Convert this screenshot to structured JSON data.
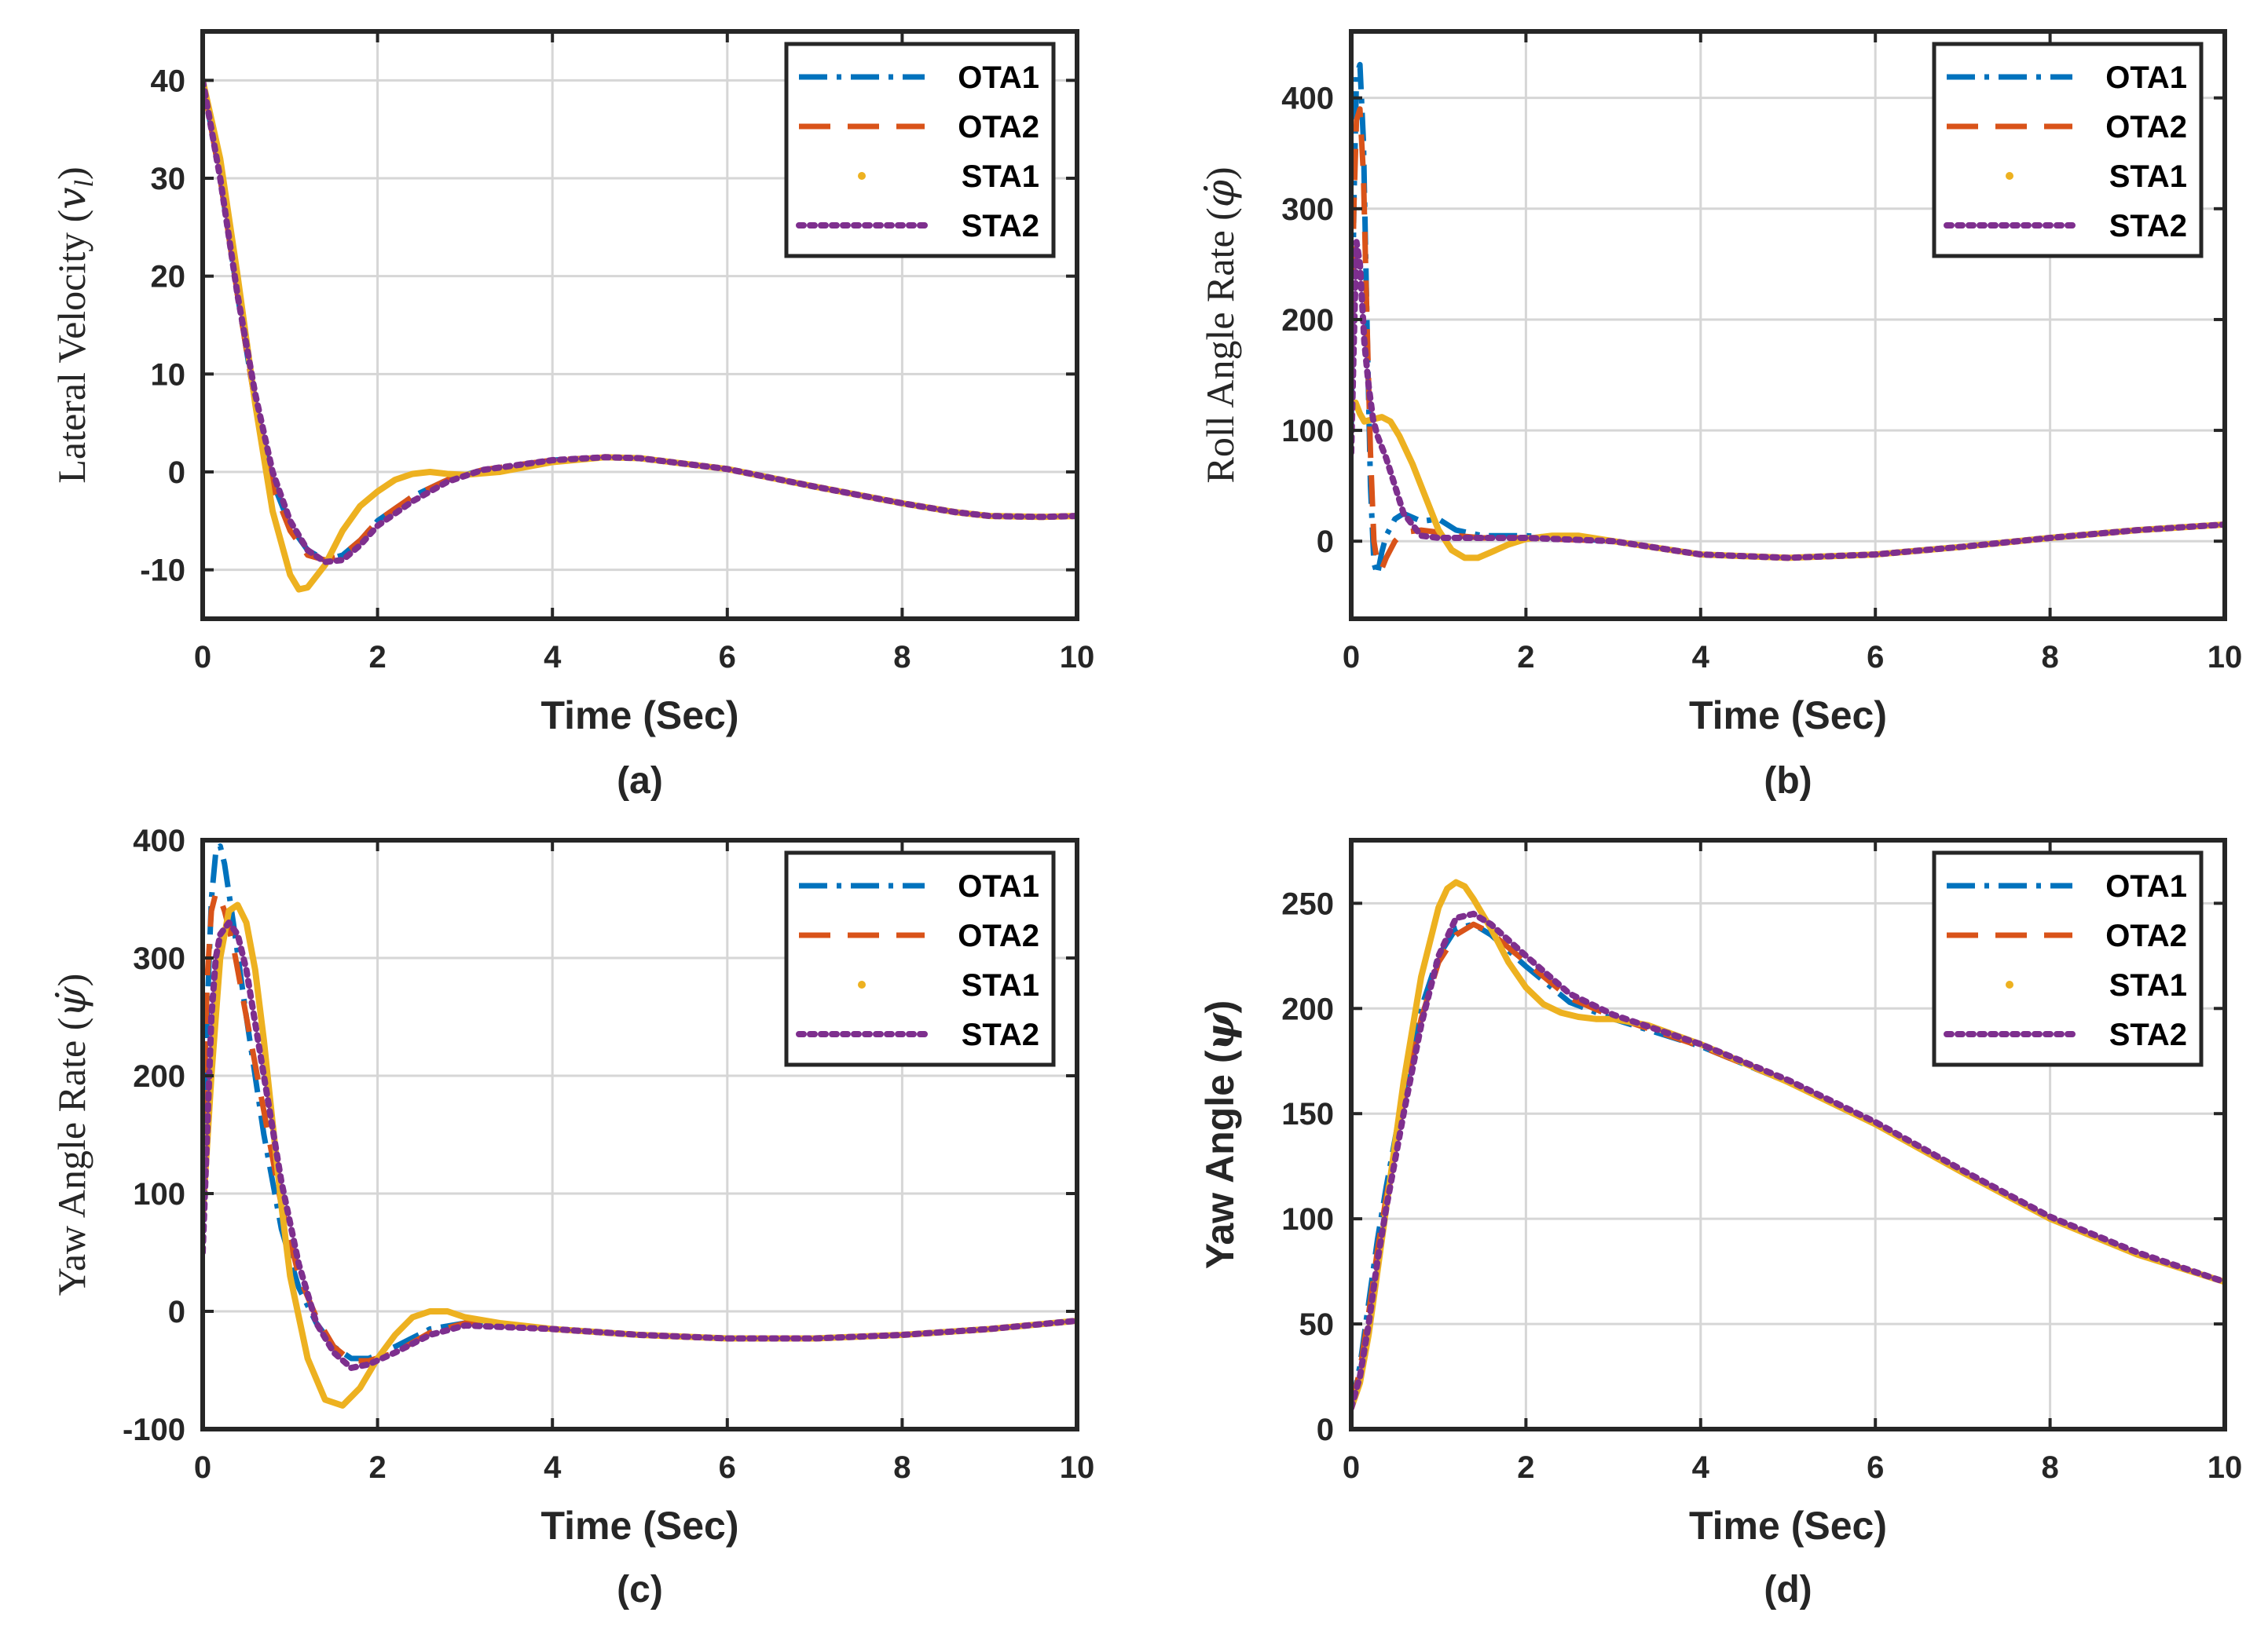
{
  "colors": {
    "OTA1": "#0072BD",
    "OTA2": "#D95319",
    "STA1": "#EDB120",
    "STA2": "#7E2F8E"
  },
  "chart_data": [
    {
      "type": "line",
      "caption": "(a)",
      "xlabel": "Time (Sec)",
      "ylabel": "Lateral Velocity (v_l)",
      "ylabel_text": "Lateral Velocity (",
      "ylabel_symbol": "v",
      "ylabel_sub": "l",
      "ylabel_close": ")",
      "xlim": [
        0,
        10
      ],
      "ylim": [
        -15,
        45
      ],
      "xticks": [
        0,
        2,
        4,
        6,
        8,
        10
      ],
      "yticks": [
        -10,
        0,
        10,
        20,
        30,
        40
      ],
      "grid": true,
      "legend": "top-right",
      "series": [
        {
          "name": "OTA1",
          "style": "dashdot",
          "x": [
            0,
            0.2,
            0.4,
            0.6,
            0.8,
            1.0,
            1.2,
            1.4,
            1.6,
            1.8,
            2.0,
            2.4,
            2.8,
            3.2,
            4.0,
            4.6,
            5.0,
            6.0,
            7.0,
            8.0,
            8.6,
            9.0,
            9.6,
            10
          ],
          "y": [
            40,
            30,
            18,
            7,
            -1,
            -5.5,
            -8,
            -9,
            -8.5,
            -7,
            -5,
            -2.5,
            -0.8,
            0.2,
            1.2,
            1.5,
            1.4,
            0.3,
            -1.5,
            -3.2,
            -4.1,
            -4.5,
            -4.6,
            -4.5
          ]
        },
        {
          "name": "OTA2",
          "style": "dashed",
          "x": [
            0,
            0.2,
            0.4,
            0.6,
            0.8,
            1.0,
            1.2,
            1.4,
            1.6,
            1.8,
            2.0,
            2.4,
            2.8,
            3.2,
            4.0,
            4.6,
            5.0,
            6.0,
            7.0,
            8.0,
            8.6,
            9.0,
            9.6,
            10
          ],
          "y": [
            40,
            30,
            18,
            7,
            -1.5,
            -6,
            -8.5,
            -9,
            -8.5,
            -7,
            -5,
            -2.5,
            -0.8,
            0.2,
            1.2,
            1.5,
            1.4,
            0.3,
            -1.5,
            -3.2,
            -4.1,
            -4.5,
            -4.6,
            -4.5
          ]
        },
        {
          "name": "STA1",
          "style": "solid",
          "x": [
            0,
            0.2,
            0.4,
            0.6,
            0.8,
            1.0,
            1.1,
            1.2,
            1.4,
            1.6,
            1.8,
            2.0,
            2.2,
            2.4,
            2.6,
            2.8,
            3.0,
            3.4,
            4.0,
            4.6,
            5.0,
            6.0,
            7.0,
            8.0,
            8.6,
            9.0,
            9.6,
            10
          ],
          "y": [
            40,
            32,
            20,
            7,
            -4,
            -10.5,
            -12,
            -11.8,
            -9.5,
            -6,
            -3.5,
            -2,
            -0.8,
            -0.2,
            0,
            -0.2,
            -0.3,
            0,
            1,
            1.5,
            1.4,
            0.3,
            -1.5,
            -3.2,
            -4.1,
            -4.5,
            -4.6,
            -4.5
          ]
        },
        {
          "name": "STA2",
          "style": "dotted",
          "x": [
            0,
            0.2,
            0.4,
            0.6,
            0.8,
            1.0,
            1.2,
            1.4,
            1.6,
            1.8,
            2.0,
            2.4,
            2.8,
            3.2,
            4.0,
            4.6,
            5.0,
            6.0,
            7.0,
            8.0,
            8.6,
            9.0,
            9.6,
            10
          ],
          "y": [
            40,
            30,
            18,
            8,
            0,
            -5,
            -8,
            -9.2,
            -9,
            -7.5,
            -5.5,
            -3,
            -1,
            0.2,
            1.2,
            1.5,
            1.4,
            0.3,
            -1.5,
            -3.2,
            -4.1,
            -4.5,
            -4.6,
            -4.5
          ]
        }
      ]
    },
    {
      "type": "line",
      "caption": "(b)",
      "xlabel": "Time (Sec)",
      "ylabel": "Roll Angle Rate (φ̇)",
      "ylabel_text": "Roll Angle Rate (",
      "ylabel_symbol": "φ̇",
      "ylabel_close": ")",
      "xlim": [
        0,
        10
      ],
      "ylim": [
        -70,
        460
      ],
      "xticks": [
        0,
        2,
        4,
        6,
        8,
        10
      ],
      "yticks": [
        0,
        100,
        200,
        300,
        400
      ],
      "grid": true,
      "legend": "top-right",
      "series": [
        {
          "name": "OTA1",
          "style": "dashdot",
          "x": [
            0,
            0.03,
            0.06,
            0.1,
            0.14,
            0.18,
            0.22,
            0.26,
            0.3,
            0.35,
            0.4,
            0.5,
            0.6,
            0.8,
            1.0,
            1.2,
            1.5,
            2.0,
            3.0,
            4.0,
            5.0,
            6.0,
            7.0,
            8.0,
            9.0,
            10
          ],
          "y": [
            100,
            300,
            420,
            430,
            360,
            200,
            50,
            -20,
            -30,
            -10,
            5,
            20,
            25,
            18,
            20,
            10,
            5,
            5,
            0,
            -12,
            -15,
            -12,
            -5,
            3,
            10,
            15
          ]
        },
        {
          "name": "OTA2",
          "style": "dashed",
          "x": [
            0,
            0.03,
            0.06,
            0.1,
            0.14,
            0.18,
            0.22,
            0.26,
            0.3,
            0.35,
            0.4,
            0.5,
            0.6,
            0.8,
            1.0,
            1.2,
            1.5,
            2.0,
            3.0,
            4.0,
            5.0,
            6.0,
            7.0,
            8.0,
            9.0,
            10
          ],
          "y": [
            150,
            300,
            380,
            390,
            330,
            200,
            80,
            0,
            -20,
            -25,
            -15,
            0,
            8,
            10,
            8,
            5,
            3,
            3,
            0,
            -12,
            -15,
            -12,
            -5,
            3,
            10,
            15
          ]
        },
        {
          "name": "STA1",
          "style": "solid",
          "x": [
            0,
            0.05,
            0.1,
            0.15,
            0.25,
            0.35,
            0.45,
            0.55,
            0.7,
            0.85,
            1.0,
            1.15,
            1.3,
            1.45,
            1.6,
            1.8,
            2.0,
            2.3,
            2.6,
            3.0,
            4.0,
            5.0,
            6.0,
            7.0,
            8.0,
            9.0,
            10
          ],
          "y": [
            120,
            125,
            115,
            108,
            110,
            112,
            108,
            95,
            70,
            40,
            10,
            -8,
            -15,
            -15,
            -10,
            -3,
            2,
            5,
            5,
            0,
            -12,
            -15,
            -12,
            -5,
            3,
            10,
            15
          ]
        },
        {
          "name": "STA2",
          "style": "dotted",
          "x": [
            0,
            0.03,
            0.06,
            0.1,
            0.15,
            0.2,
            0.25,
            0.3,
            0.4,
            0.5,
            0.6,
            0.8,
            1.0,
            1.2,
            1.5,
            2.0,
            3.0,
            4.0,
            5.0,
            6.0,
            7.0,
            8.0,
            9.0,
            10
          ],
          "y": [
            80,
            180,
            270,
            250,
            180,
            140,
            110,
            95,
            75,
            50,
            25,
            5,
            3,
            3,
            3,
            3,
            0,
            -12,
            -15,
            -12,
            -5,
            3,
            10,
            15
          ]
        }
      ]
    },
    {
      "type": "line",
      "caption": "(c)",
      "xlabel": "Time (Sec)",
      "ylabel": "Yaw Angle Rate (ψ̇)",
      "ylabel_text": "Yaw Angle Rate (",
      "ylabel_symbol": "ψ̇",
      "ylabel_close": ")",
      "xlim": [
        0,
        10
      ],
      "ylim": [
        -100,
        400
      ],
      "xticks": [
        0,
        2,
        4,
        6,
        8,
        10
      ],
      "yticks": [
        -100,
        0,
        100,
        200,
        300,
        400
      ],
      "grid": true,
      "legend": "top-right",
      "series": [
        {
          "name": "OTA1",
          "style": "dashdot",
          "x": [
            0,
            0.05,
            0.1,
            0.15,
            0.2,
            0.25,
            0.35,
            0.5,
            0.7,
            0.9,
            1.1,
            1.3,
            1.5,
            1.7,
            1.9,
            2.2,
            2.6,
            3.0,
            4.0,
            5.0,
            6.0,
            7.0,
            8.0,
            9.0,
            10
          ],
          "y": [
            100,
            250,
            350,
            390,
            395,
            380,
            330,
            250,
            150,
            70,
            20,
            -10,
            -30,
            -40,
            -40,
            -30,
            -15,
            -10,
            -15,
            -20,
            -23,
            -23,
            -20,
            -15,
            -8
          ]
        },
        {
          "name": "OTA2",
          "style": "dashed",
          "x": [
            0,
            0.05,
            0.1,
            0.15,
            0.2,
            0.25,
            0.35,
            0.5,
            0.7,
            0.9,
            1.1,
            1.3,
            1.5,
            1.7,
            1.9,
            2.2,
            2.6,
            3.0,
            4.0,
            5.0,
            6.0,
            7.0,
            8.0,
            9.0,
            10
          ],
          "y": [
            120,
            280,
            340,
            355,
            350,
            340,
            310,
            250,
            170,
            90,
            30,
            -5,
            -30,
            -42,
            -42,
            -35,
            -18,
            -10,
            -15,
            -20,
            -23,
            -23,
            -20,
            -15,
            -8
          ]
        },
        {
          "name": "STA1",
          "style": "solid",
          "x": [
            0,
            0.1,
            0.2,
            0.3,
            0.4,
            0.5,
            0.6,
            0.7,
            0.8,
            0.9,
            1.0,
            1.2,
            1.4,
            1.6,
            1.8,
            2.0,
            2.2,
            2.4,
            2.6,
            2.8,
            3.0,
            3.4,
            4.0,
            5.0,
            6.0,
            7.0,
            8.0,
            9.0,
            10
          ],
          "y": [
            80,
            200,
            300,
            340,
            345,
            330,
            290,
            230,
            160,
            90,
            30,
            -40,
            -75,
            -80,
            -65,
            -40,
            -20,
            -5,
            0,
            0,
            -5,
            -10,
            -15,
            -20,
            -23,
            -23,
            -20,
            -15,
            -8
          ]
        },
        {
          "name": "STA2",
          "style": "dotted",
          "x": [
            0,
            0.05,
            0.1,
            0.15,
            0.2,
            0.3,
            0.4,
            0.5,
            0.7,
            0.9,
            1.1,
            1.3,
            1.5,
            1.7,
            1.9,
            2.2,
            2.6,
            3.0,
            4.0,
            5.0,
            6.0,
            7.0,
            8.0,
            9.0,
            10
          ],
          "y": [
            50,
            150,
            250,
            300,
            320,
            330,
            320,
            290,
            200,
            110,
            40,
            -10,
            -35,
            -48,
            -45,
            -35,
            -20,
            -12,
            -15,
            -20,
            -23,
            -23,
            -20,
            -15,
            -8
          ]
        }
      ]
    },
    {
      "type": "line",
      "caption": "(d)",
      "xlabel": "Time (Sec)",
      "ylabel": "Yaw Angle (ψ)",
      "ylabel_text": "Yaw Angle (",
      "ylabel_symbol": "ψ",
      "ylabel_close": ")",
      "xlim": [
        0,
        10
      ],
      "ylim": [
        0,
        280
      ],
      "xticks": [
        0,
        2,
        4,
        6,
        8,
        10
      ],
      "yticks": [
        0,
        50,
        100,
        150,
        200,
        250
      ],
      "grid": true,
      "legend": "top-right",
      "series": [
        {
          "name": "OTA1",
          "style": "dashdot",
          "x": [
            0,
            0.1,
            0.2,
            0.3,
            0.4,
            0.6,
            0.8,
            1.0,
            1.2,
            1.4,
            1.6,
            2.0,
            2.5,
            3.0,
            4.0,
            5.0,
            6.0,
            7.0,
            8.0,
            9.0,
            10
          ],
          "y": [
            10,
            30,
            60,
            90,
            115,
            160,
            200,
            225,
            238,
            240,
            235,
            220,
            203,
            195,
            182,
            165,
            145,
            122,
            100,
            83,
            70
          ]
        },
        {
          "name": "OTA2",
          "style": "dashed",
          "x": [
            0,
            0.1,
            0.2,
            0.3,
            0.4,
            0.6,
            0.8,
            1.0,
            1.2,
            1.4,
            1.6,
            2.0,
            2.5,
            3.0,
            4.0,
            5.0,
            6.0,
            7.0,
            8.0,
            9.0,
            10
          ],
          "y": [
            10,
            28,
            55,
            85,
            110,
            155,
            195,
            222,
            235,
            240,
            236,
            222,
            205,
            196,
            182,
            165,
            145,
            122,
            100,
            83,
            70
          ]
        },
        {
          "name": "STA1",
          "style": "solid",
          "x": [
            0,
            0.1,
            0.2,
            0.3,
            0.4,
            0.6,
            0.8,
            1.0,
            1.1,
            1.2,
            1.3,
            1.4,
            1.6,
            1.8,
            2.0,
            2.2,
            2.4,
            2.6,
            2.8,
            3.0,
            3.4,
            4.0,
            5.0,
            6.0,
            7.0,
            8.0,
            9.0,
            10
          ],
          "y": [
            10,
            22,
            45,
            75,
            105,
            165,
            215,
            248,
            257,
            260,
            258,
            252,
            238,
            222,
            210,
            202,
            198,
            196,
            195,
            195,
            192,
            183,
            165,
            145,
            122,
            100,
            83,
            70
          ]
        },
        {
          "name": "STA2",
          "style": "dotted",
          "x": [
            0,
            0.1,
            0.2,
            0.3,
            0.4,
            0.6,
            0.8,
            1.0,
            1.2,
            1.4,
            1.6,
            2.0,
            2.5,
            3.0,
            4.0,
            5.0,
            6.0,
            7.0,
            8.0,
            9.0,
            10
          ],
          "y": [
            10,
            25,
            50,
            80,
            105,
            150,
            192,
            225,
            243,
            245,
            240,
            225,
            207,
            197,
            183,
            166,
            146,
            123,
            101,
            84,
            70
          ]
        }
      ]
    }
  ]
}
